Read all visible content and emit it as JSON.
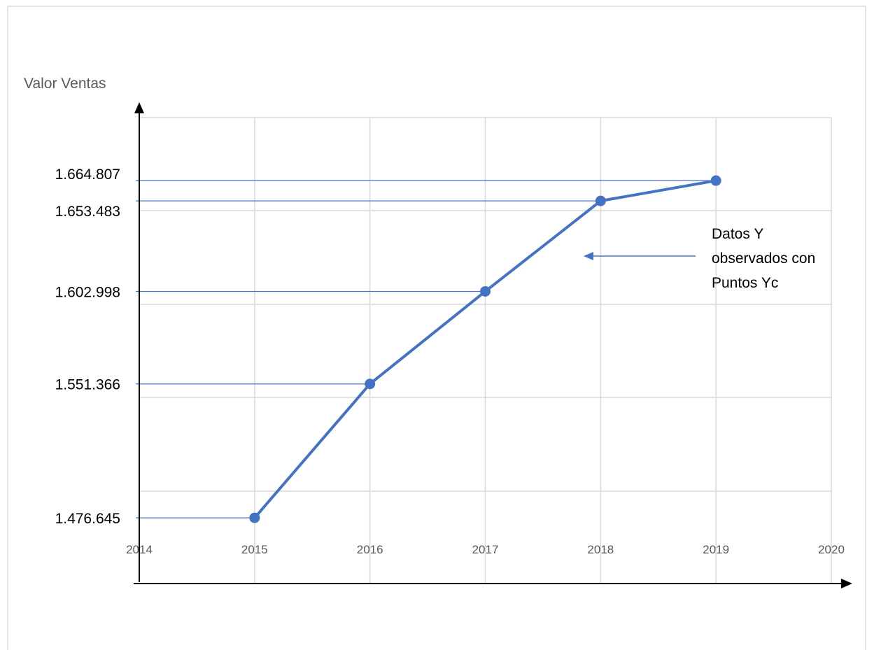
{
  "chart_data": {
    "type": "line",
    "ylabel": "Valor Ventas",
    "xlabel": "",
    "x_ticks": [
      "2014",
      "2015",
      "2016",
      "2017",
      "2018",
      "2019",
      "2020"
    ],
    "xlim": [
      2014,
      2020
    ],
    "ylim": [
      1440000,
      1700000
    ],
    "grid": true,
    "series": [
      {
        "color": "#4472c4",
        "x": [
          2015,
          2016,
          2017,
          2018,
          2019
        ],
        "values": [
          1476645,
          1551366,
          1602998,
          1653483,
          1664807
        ]
      }
    ],
    "y_value_labels": [
      "1.664.807",
      "1.653.483",
      "1.602.998",
      "1.551.366",
      "1.476.645"
    ],
    "annotation_lines": [
      "Datos Y",
      "observados con",
      "Puntos Yc"
    ],
    "colors": {
      "series": "#4472c4",
      "grid": "#d9d9d9",
      "axis": "#000000"
    }
  }
}
